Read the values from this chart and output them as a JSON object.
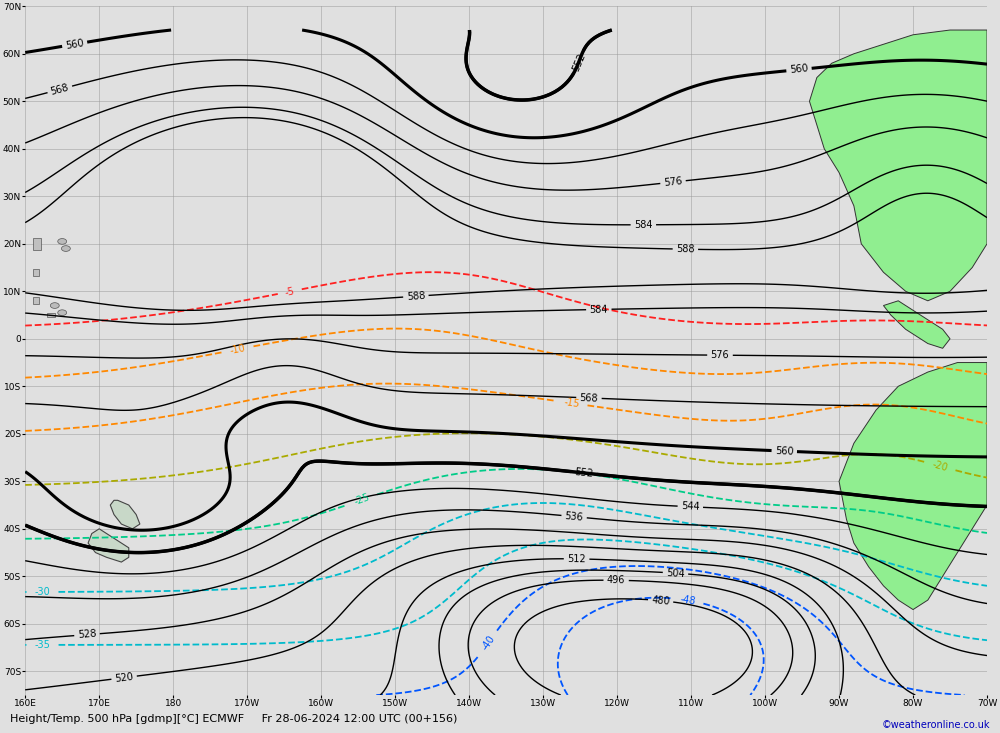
{
  "title": "Height/Temp. 500 hPa [gdmp][°C] ECMWF",
  "datetime_str": "Fr 28-06-2024 12:00 UTC (00+156)",
  "credit": "©weatheronline.co.uk",
  "background_color": "#e0e0e0",
  "fig_width": 10.0,
  "fig_height": 7.33,
  "xlim": [
    160,
    290
  ],
  "ylim": [
    -75,
    65
  ],
  "z500_color": "#000000",
  "temp_color_red": "#ff2020",
  "temp_color_orange": "#ff8800",
  "temp_color_yellow": "#aaaa00",
  "temp_color_lgreen": "#88cc00",
  "temp_color_teal": "#00cc88",
  "temp_color_cyan": "#00bbcc",
  "temp_color_blue": "#0055ff"
}
